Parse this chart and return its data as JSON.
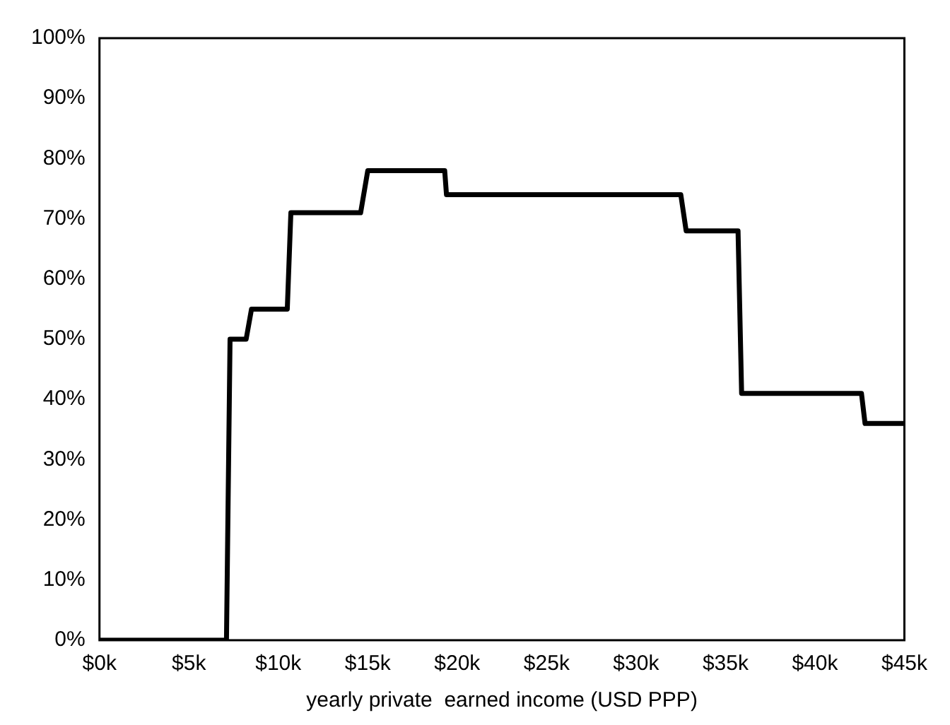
{
  "chart_data": {
    "type": "line",
    "xlabel": "yearly private  earned income (USD PPP)",
    "x": [
      0,
      7.1,
      7.3,
      8.2,
      8.5,
      10.5,
      10.7,
      14.6,
      15.0,
      19.3,
      19.4,
      32.5,
      32.8,
      35.7,
      35.9,
      42.6,
      42.8,
      45
    ],
    "series": [
      {
        "color": "#000000",
        "values": [
          0,
          0,
          50,
          50,
          55,
          55,
          71,
          71,
          78,
          78,
          74,
          74,
          68,
          68,
          41,
          41,
          36,
          36
        ]
      }
    ],
    "xlim": [
      0,
      45
    ],
    "xticks": [
      {
        "value": 0,
        "label": "$0k"
      },
      {
        "value": 5,
        "label": "$5k"
      },
      {
        "value": 10,
        "label": "$10k"
      },
      {
        "value": 15,
        "label": "$15k"
      },
      {
        "value": 20,
        "label": "$20k"
      },
      {
        "value": 25,
        "label": "$25k"
      },
      {
        "value": 30,
        "label": "$30k"
      },
      {
        "value": 35,
        "label": "$35k"
      },
      {
        "value": 40,
        "label": "$40k"
      },
      {
        "value": 45,
        "label": "$45k"
      }
    ],
    "ylim": [
      0,
      100
    ],
    "yticks": [
      {
        "value": 0,
        "label": "0%"
      },
      {
        "value": 10,
        "label": "10%"
      },
      {
        "value": 20,
        "label": "20%"
      },
      {
        "value": 30,
        "label": "30%"
      },
      {
        "value": 40,
        "label": "40%"
      },
      {
        "value": 50,
        "label": "50%"
      },
      {
        "value": 60,
        "label": "60%"
      },
      {
        "value": 70,
        "label": "70%"
      },
      {
        "value": 80,
        "label": "80%"
      },
      {
        "value": 90,
        "label": "90%"
      },
      {
        "value": 100,
        "label": "100%"
      }
    ],
    "grid": false,
    "legend": false,
    "marker": "none",
    "line_style": "solid"
  }
}
